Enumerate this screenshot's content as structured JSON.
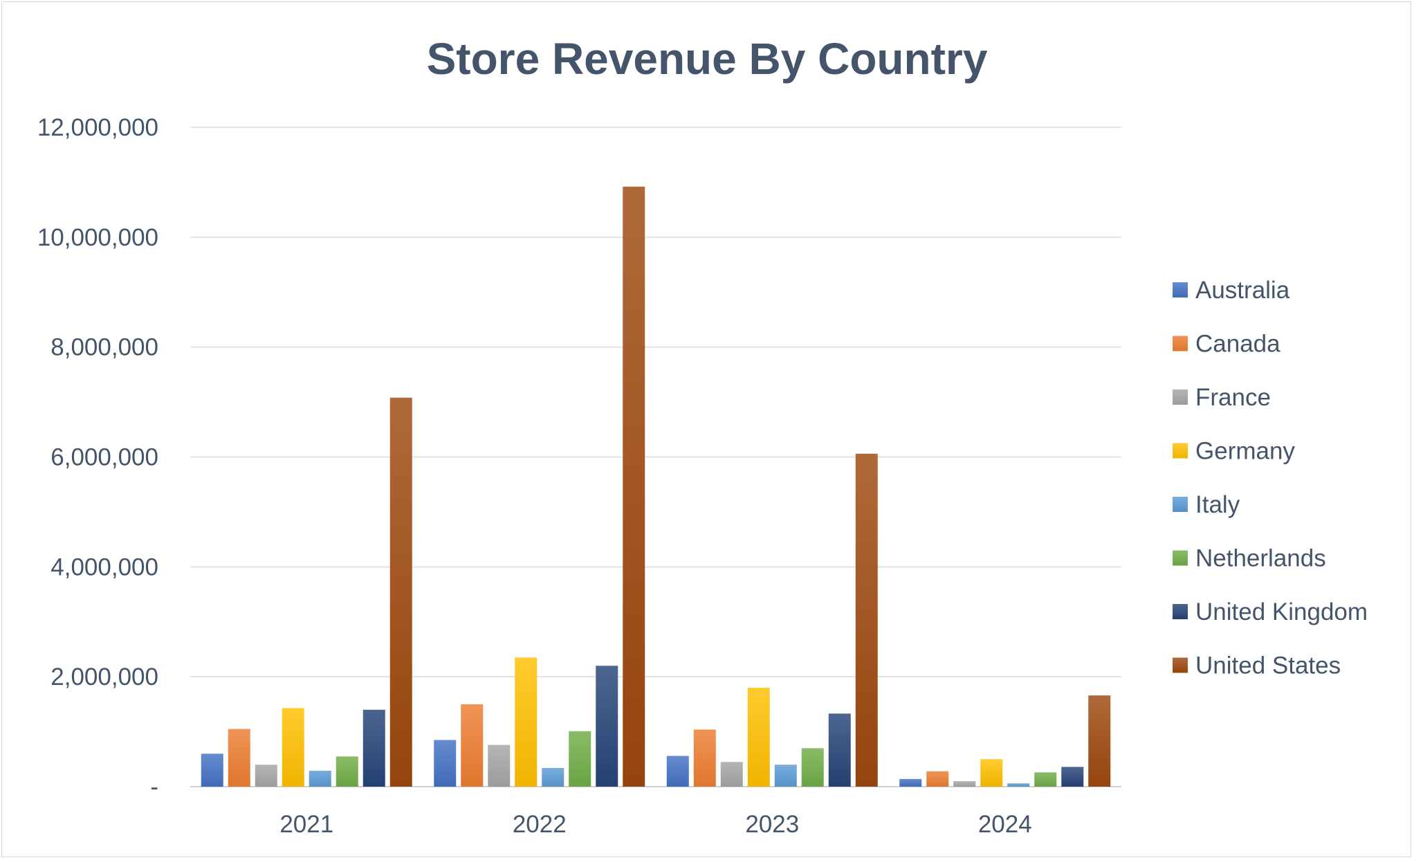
{
  "chart_data": {
    "type": "bar",
    "title": "Store Revenue By Country",
    "xlabel": "",
    "ylabel": "",
    "categories": [
      "2021",
      "2022",
      "2023",
      "2024"
    ],
    "ylim": [
      0,
      12000000
    ],
    "yticks": [
      0,
      2000000,
      4000000,
      6000000,
      8000000,
      10000000,
      12000000
    ],
    "ytick_labels": [
      "-",
      "2,000,000",
      "4,000,000",
      "6,000,000",
      "8,000,000",
      "10,000,000",
      "12,000,000"
    ],
    "grid": true,
    "legend_position": "right",
    "series": [
      {
        "name": "Australia",
        "color": "#4472c4",
        "values": [
          600000,
          850000,
          560000,
          140000
        ]
      },
      {
        "name": "Canada",
        "color": "#ed7d31",
        "values": [
          1050000,
          1500000,
          1040000,
          280000
        ]
      },
      {
        "name": "France",
        "color": "#a5a5a5",
        "values": [
          400000,
          760000,
          450000,
          100000
        ]
      },
      {
        "name": "Germany",
        "color": "#ffc000",
        "values": [
          1430000,
          2350000,
          1800000,
          500000
        ]
      },
      {
        "name": "Italy",
        "color": "#5b9bd5",
        "values": [
          290000,
          340000,
          400000,
          60000
        ]
      },
      {
        "name": "Netherlands",
        "color": "#70ad47",
        "values": [
          550000,
          1010000,
          700000,
          260000
        ]
      },
      {
        "name": "United Kingdom",
        "color": "#264478",
        "values": [
          1400000,
          2200000,
          1330000,
          360000
        ]
      },
      {
        "name": "United States",
        "color": "#9e480e",
        "values": [
          7080000,
          10920000,
          6060000,
          1660000
        ]
      }
    ]
  }
}
